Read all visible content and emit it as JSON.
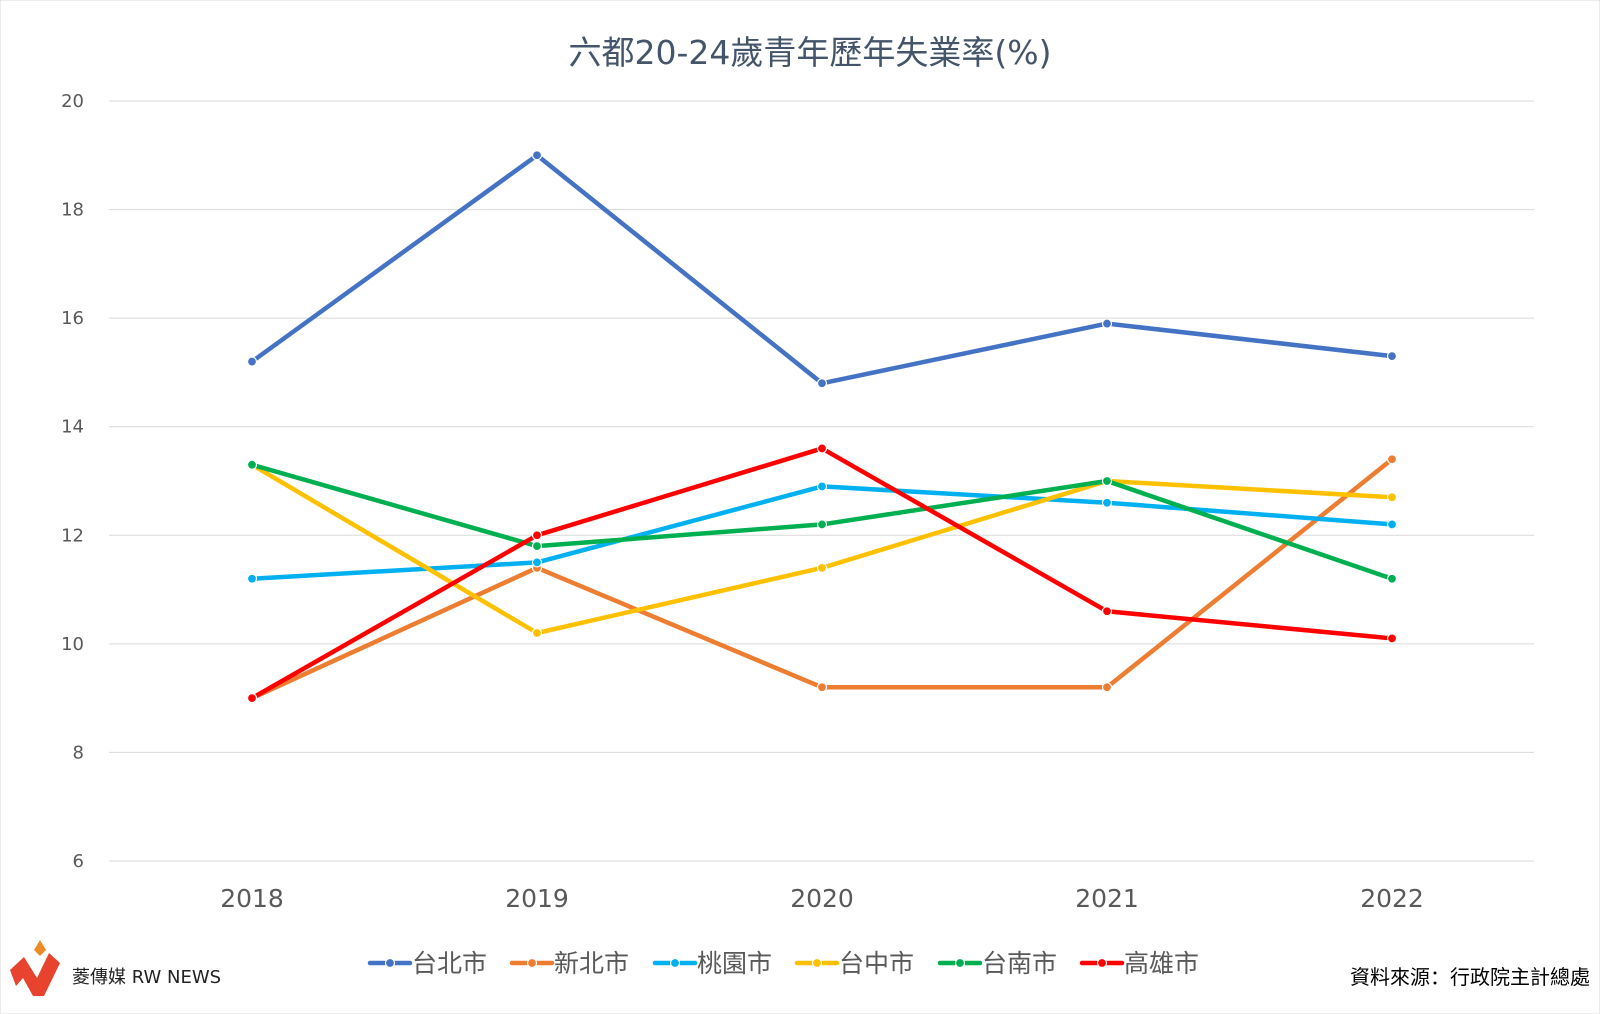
{
  "chart_data": {
    "type": "line",
    "title": "六都20-24歲青年歷年失業率(%)",
    "categories": [
      "2018",
      "2019",
      "2020",
      "2021",
      "2022"
    ],
    "ylim": [
      6,
      20
    ],
    "yticks": [
      6,
      8,
      10,
      12,
      14,
      16,
      18,
      20
    ],
    "grid": true,
    "legend_position": "bottom",
    "series": [
      {
        "name": "台北市",
        "color": "#4472c4",
        "values": [
          15.2,
          19.0,
          14.8,
          15.9,
          15.3
        ]
      },
      {
        "name": "新北市",
        "color": "#ed7d31",
        "values": [
          9.0,
          11.4,
          9.2,
          9.2,
          13.4
        ]
      },
      {
        "name": "桃園市",
        "color": "#00b0f0",
        "values": [
          11.2,
          11.5,
          12.9,
          12.6,
          12.2
        ]
      },
      {
        "name": "台中市",
        "color": "#ffc000",
        "values": [
          13.3,
          10.2,
          11.4,
          13.0,
          12.7
        ]
      },
      {
        "name": "台南市",
        "color": "#00b050",
        "values": [
          13.3,
          11.8,
          12.2,
          13.0,
          11.2
        ]
      },
      {
        "name": "高雄市",
        "color": "#ff0000",
        "values": [
          9.0,
          12.0,
          13.6,
          10.6,
          10.1
        ]
      }
    ]
  },
  "source": "資料來源：行政院主計總處",
  "logo": {
    "text": "菱傳媒 RW NEWS",
    "icon": "rw-logo-icon",
    "accent": "#e8432e"
  }
}
